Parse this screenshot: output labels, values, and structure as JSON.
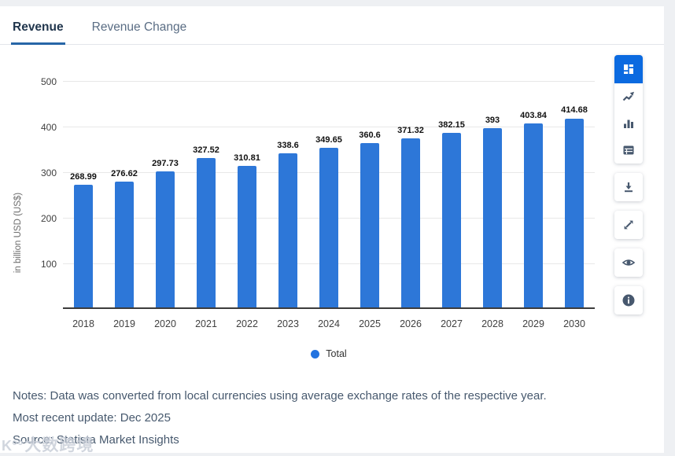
{
  "tabs": {
    "revenue": "Revenue",
    "revenue_change": "Revenue Change"
  },
  "chart_data": {
    "type": "bar",
    "title": "",
    "categories": [
      "2018",
      "2019",
      "2020",
      "2021",
      "2022",
      "2023",
      "2024",
      "2025",
      "2026",
      "2027",
      "2028",
      "2029",
      "2030"
    ],
    "values": [
      268.99,
      276.62,
      297.73,
      327.52,
      310.81,
      338.6,
      349.65,
      360.6,
      371.32,
      382.15,
      393,
      403.84,
      414.68
    ],
    "value_labels": [
      "268.99",
      "276.62",
      "297.73",
      "327.52",
      "310.81",
      "338.6",
      "349.65",
      "360.6",
      "371.32",
      "382.15",
      "393",
      "403.84",
      "414.68"
    ],
    "series_name": "Total",
    "xlabel": "",
    "ylabel": "in billion USD (US$)",
    "ylim": [
      0,
      500
    ],
    "yticks": [
      100,
      200,
      300,
      400,
      500
    ],
    "bar_color": "#2d77d8",
    "grid": "horizontal",
    "legend_position": "bottom"
  },
  "notes": {
    "line1": "Notes: Data was converted from local currencies using average exchange rates of the respective year.",
    "line2": "Most recent update: Dec 2025",
    "line3": "Source: Statista Market Insights"
  },
  "toolbar": {
    "icons": [
      "dashboard-icon",
      "line-chart-icon",
      "bar-chart-icon",
      "table-icon",
      "download-icon",
      "expand-icon",
      "eye-icon",
      "info-icon"
    ],
    "active_color": "#0b6ae0",
    "icon_color": "#47586e"
  },
  "watermark": {
    "logo": "K°°",
    "text": "大数跨境"
  },
  "colors": {
    "bar": "#2d77d8",
    "tab_underline": "#2766a7",
    "tab_active_text": "#21364d",
    "notes_text": "#47596e",
    "baseline": "#3c3c3c"
  }
}
